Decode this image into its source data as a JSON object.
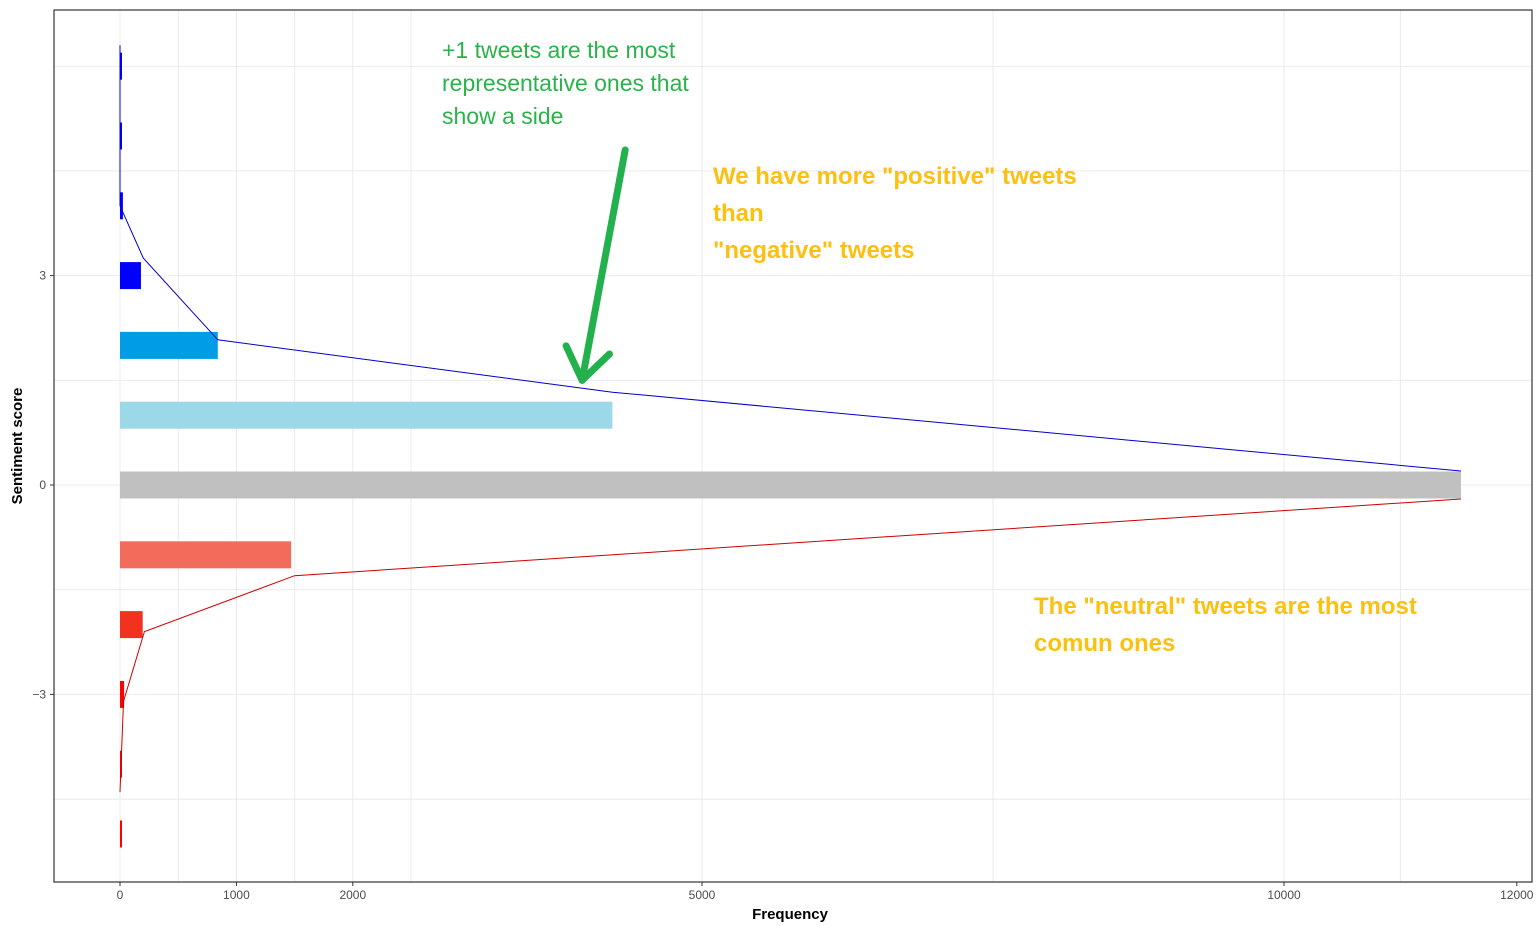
{
  "chart_data": {
    "type": "bar",
    "orientation": "horizontal",
    "xlabel": "Frequency",
    "ylabel": "Sentiment score",
    "xlim": [
      -250,
      12000
    ],
    "ylim": [
      -5.5,
      6.7
    ],
    "x_ticks": [
      0,
      1000,
      2000,
      5000,
      10000,
      12000
    ],
    "y_ticks": [
      3,
      0,
      -3
    ],
    "grid": true,
    "bars": [
      {
        "score": 6,
        "value": 8,
        "color": "#0000ff"
      },
      {
        "score": 5,
        "value": 8,
        "color": "#0000ff"
      },
      {
        "score": 4,
        "value": 25,
        "color": "#0000ff"
      },
      {
        "score": 3,
        "value": 180,
        "color": "#0000ff"
      },
      {
        "score": 2,
        "value": 840,
        "color": "#009de6"
      },
      {
        "score": 1,
        "value": 4230,
        "color": "#9bd8e8"
      },
      {
        "score": 0,
        "value": 11520,
        "color": "#c0c0c0"
      },
      {
        "score": -1,
        "value": 1470,
        "color": "#f26b5b"
      },
      {
        "score": -2,
        "value": 195,
        "color": "#f0321e"
      },
      {
        "score": -3,
        "value": 35,
        "color": "#ff0000"
      },
      {
        "score": -4,
        "value": 6,
        "color": "#ff0000"
      },
      {
        "score": -5,
        "value": 6,
        "color": "#ff0000"
      }
    ],
    "positive_trend_line": [
      {
        "score": 6.3,
        "value": 0
      },
      {
        "score": 4,
        "value": 0
      },
      {
        "score": 3.25,
        "value": 200
      },
      {
        "score": 2.08,
        "value": 840
      },
      {
        "score": 1.33,
        "value": 4230
      },
      {
        "score": 0.2,
        "value": 11520
      }
    ],
    "negative_trend_line": [
      {
        "score": -0.2,
        "value": 11520
      },
      {
        "score": -1.3,
        "value": 1500
      },
      {
        "score": -2.1,
        "value": 210
      },
      {
        "score": -3.1,
        "value": 30
      },
      {
        "score": -4.4,
        "value": 0
      }
    ],
    "line_colors": {
      "positive": "#0000cc",
      "negative": "#cc0000"
    },
    "arrow": {
      "from": {
        "value": 4340,
        "score": 4.8
      },
      "to": {
        "value": 3970,
        "score": 1.5
      },
      "color": "#22b14c"
    }
  },
  "annotations": [
    {
      "text": "+1 tweets are the most\nrepresentative ones that\nshow a  side",
      "color": "#2ab34a"
    },
    {
      "text": "We have more \"positive\" tweets\nthan\n\"negative\" tweets",
      "color": "#fcc010"
    },
    {
      "text": "The \"neutral\" tweets are the most\ncomun ones",
      "color": "#fcc010"
    }
  ]
}
